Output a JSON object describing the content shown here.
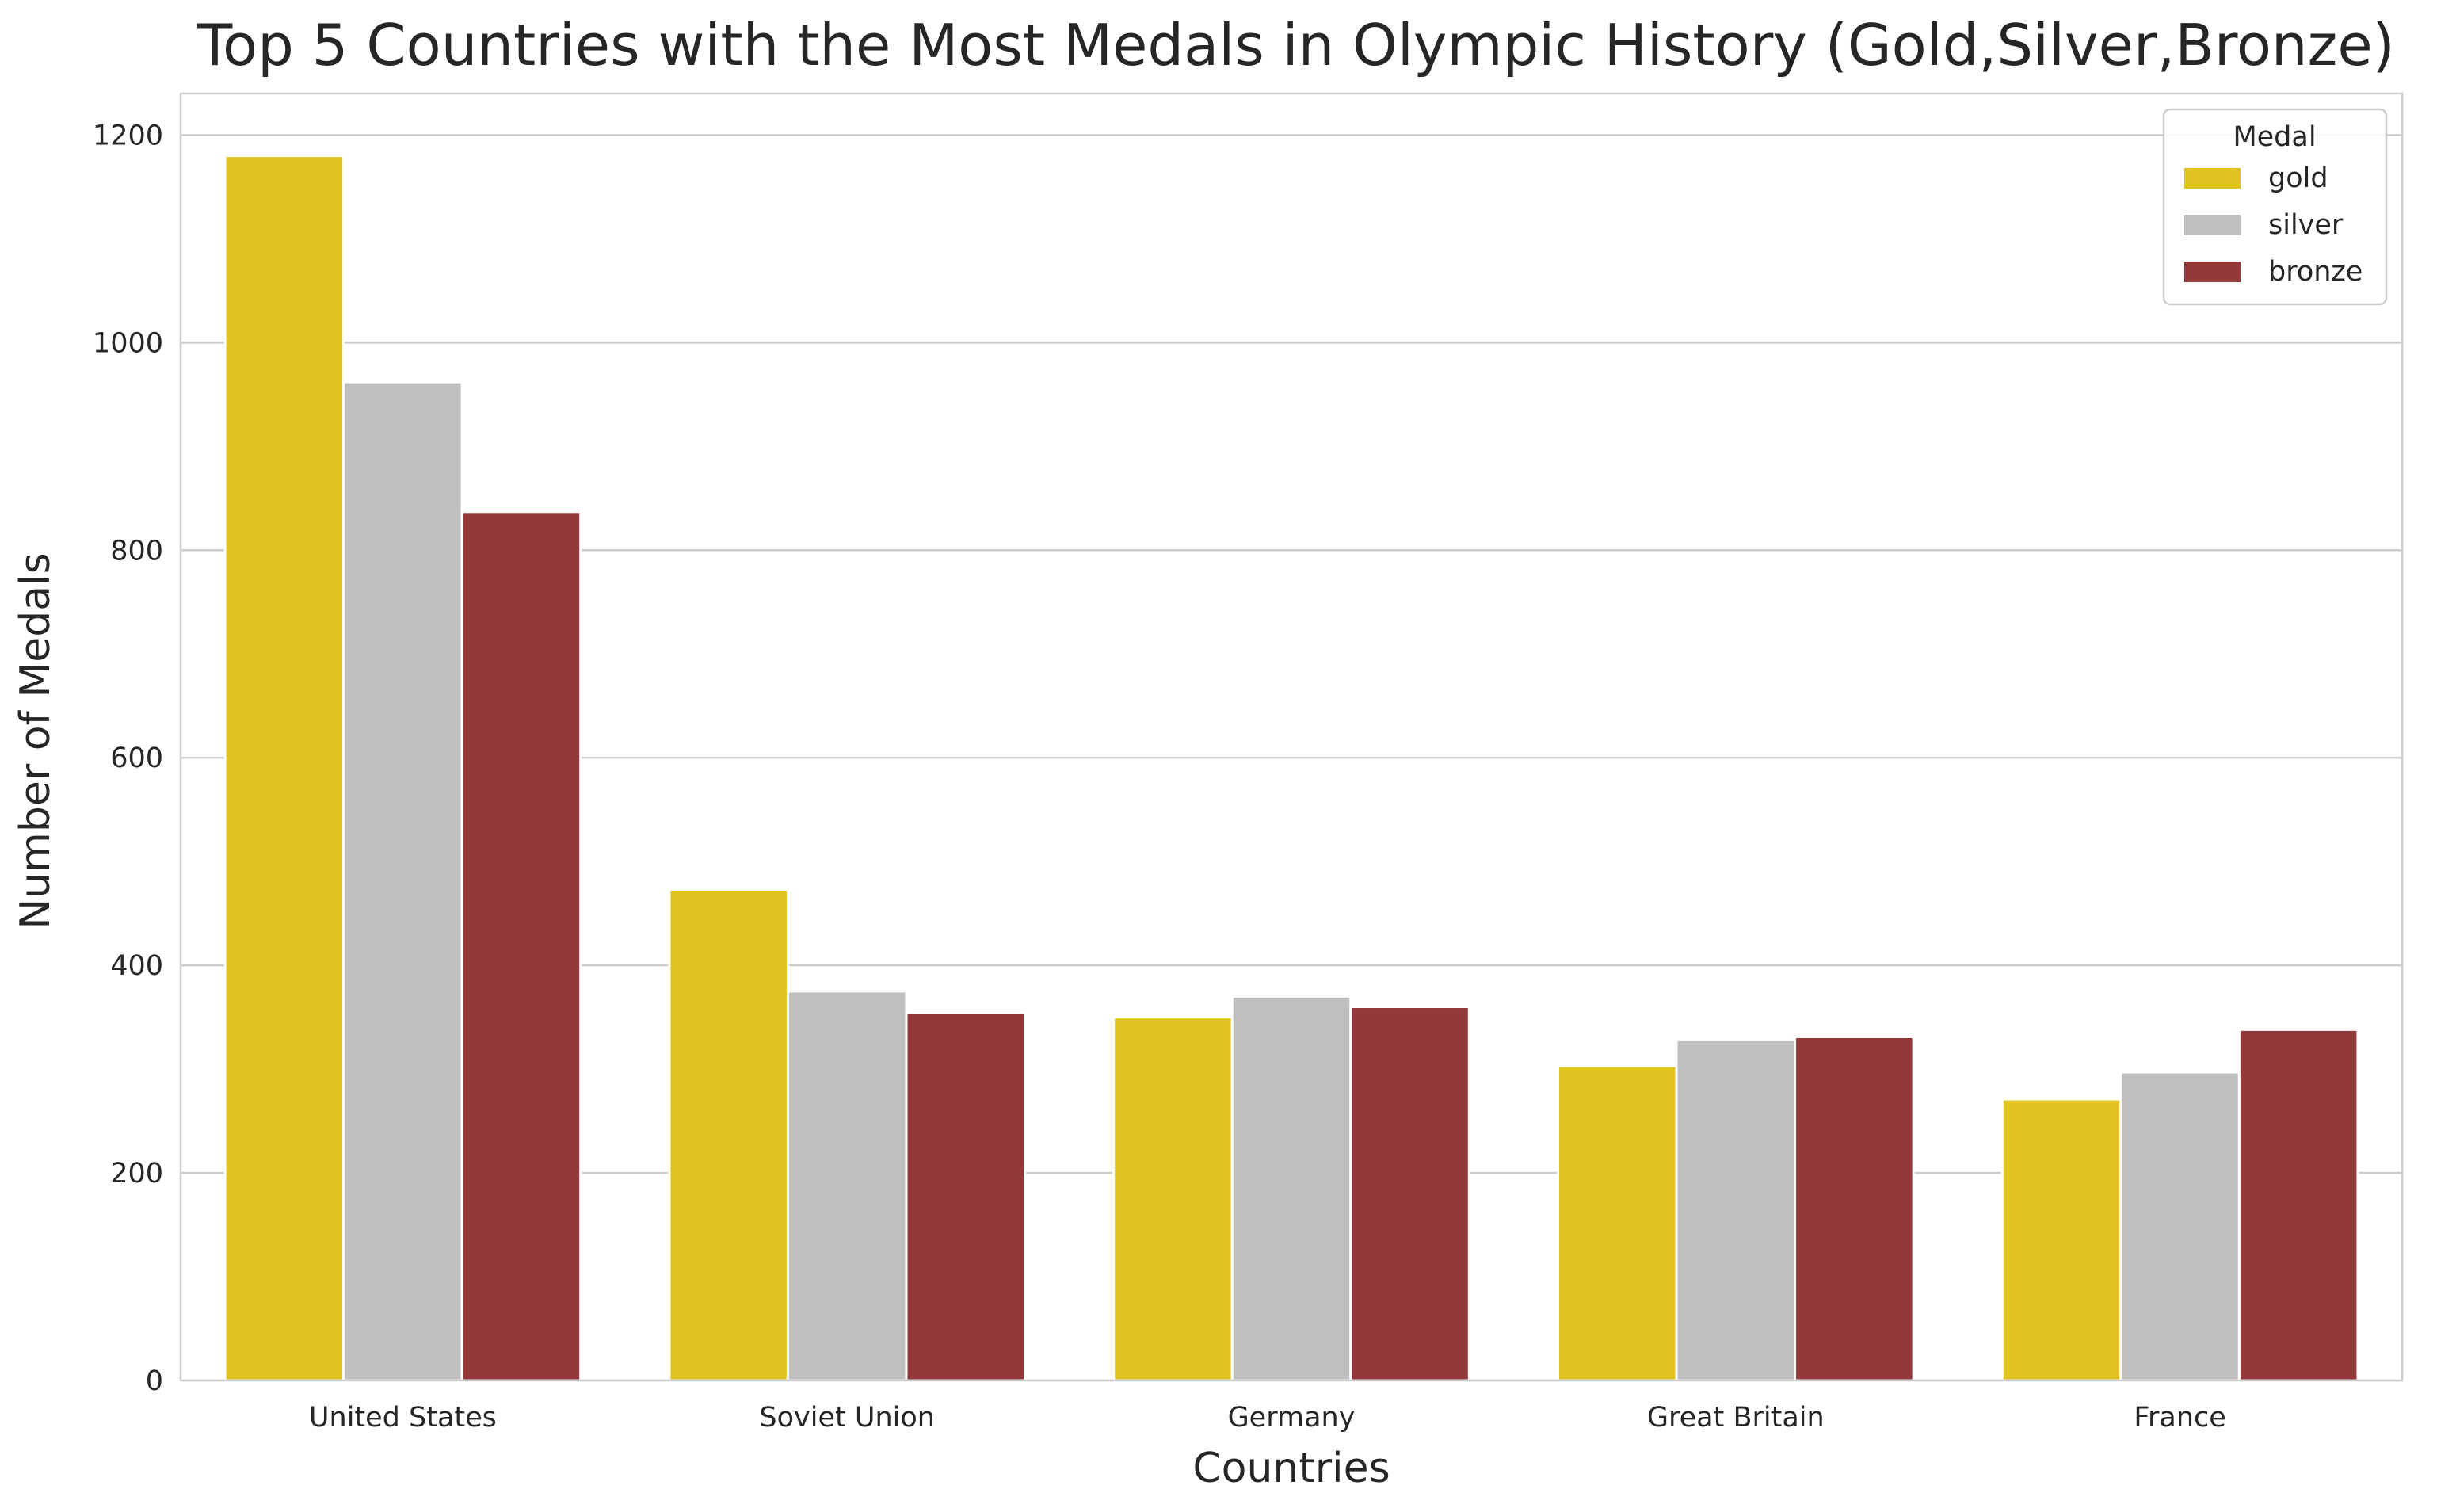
{
  "chart_data": {
    "type": "bar",
    "title": "Top 5 Countries with the Most Medals in Olympic History (Gold,Silver,Bronze)",
    "xlabel": "Countries",
    "ylabel": "Number of Medals",
    "categories": [
      "United States",
      "Soviet Union",
      "Germany",
      "Great Britain",
      "France"
    ],
    "series": [
      {
        "name": "gold",
        "values": [
          1180,
          473,
          350,
          303,
          271
        ],
        "color": "#E0C322"
      },
      {
        "name": "silver",
        "values": [
          962,
          375,
          370,
          328,
          297
        ],
        "color": "#BFBFBF"
      },
      {
        "name": "bronze",
        "values": [
          837,
          354,
          360,
          331,
          338
        ],
        "color": "#943939"
      }
    ],
    "ylim": [
      0,
      1240
    ],
    "yticks": [
      0,
      200,
      400,
      600,
      800,
      1000,
      1200
    ],
    "grid": true,
    "legend": {
      "title": "Medal",
      "position": "top-right"
    }
  }
}
